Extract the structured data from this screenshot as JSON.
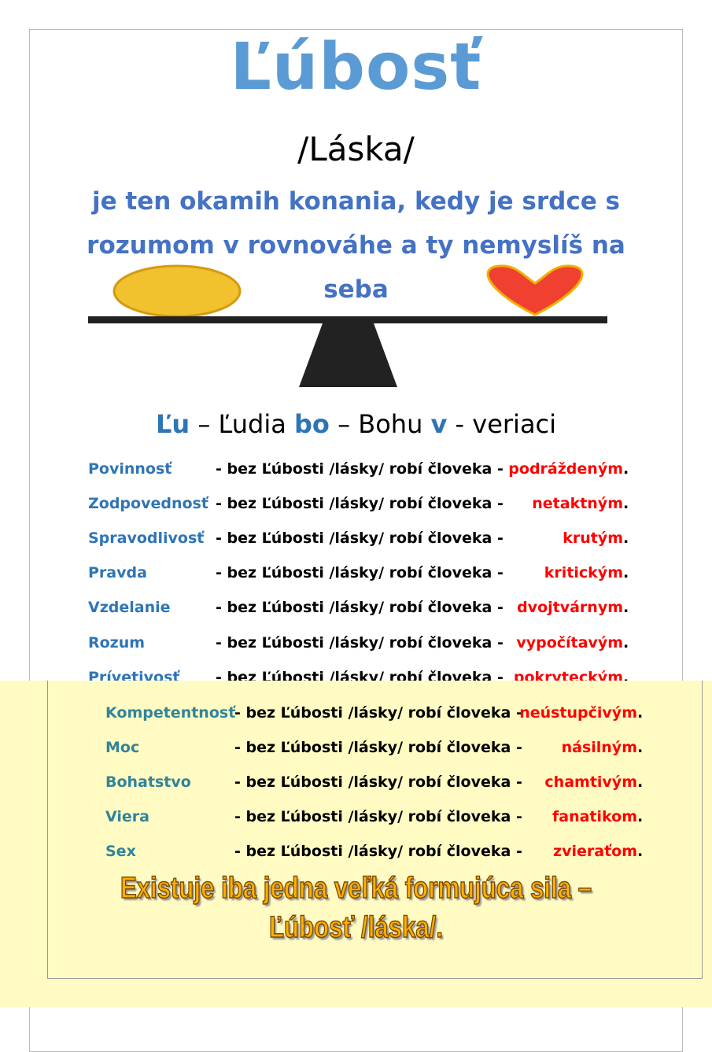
{
  "title": "Ľúbosť",
  "subtitle": "/Láska/",
  "intro": "je ten okamih konania, kedy je srdce s rozumom v rovnováhe a ty nemyslíš na seba",
  "acronym": {
    "p1": "Ľu",
    "t1": " – Ľudia  ",
    "p2": "bo",
    "t2": " – Bohu  ",
    "p3": "v",
    "t3": "  - veriaci"
  },
  "middle_text": "- bez Ľúbosti /lásky/ robí človeka -",
  "rows": [
    {
      "label": "Povinnosť",
      "result": "podráždeným"
    },
    {
      "label": "Zodpovednosť",
      "result": "netaktným"
    },
    {
      "label": "Spravodlivosť",
      "result": "krutým"
    },
    {
      "label": "Pravda",
      "result": "kritickým"
    },
    {
      "label": "Vzdelanie",
      "result": "dvojtvárnym"
    },
    {
      "label": "Rozum",
      "result": "vypočítavým"
    },
    {
      "label": "Prívetivosť",
      "result": "pokryteckým"
    },
    {
      "label": "Kompetentnosť",
      "result": "neústupčivým"
    },
    {
      "label": "Moc",
      "result": "násilným"
    },
    {
      "label": "Bohatstvo",
      "result": "chamtivým"
    },
    {
      "label": "Viera",
      "result": "fanatikom"
    },
    {
      "label": "Sex",
      "result": "zvieraťom"
    }
  ],
  "dot": ".",
  "banner": {
    "line1": "Existuje iba jedna veľká formujúca sila –",
    "line2": "Ľúbosť /láska/."
  },
  "colors": {
    "title": "#5b9bd5",
    "intro": "#4472c4",
    "result": "#ff0000",
    "panel": "#fffbc3"
  }
}
